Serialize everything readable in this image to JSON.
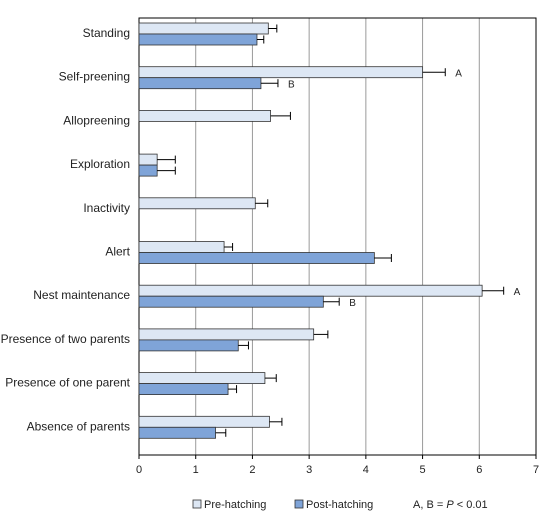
{
  "chart_data": {
    "type": "bar",
    "orientation": "horizontal",
    "categories": [
      "Standing",
      "Self-preening",
      "Allopreening",
      "Exploration",
      "Inactivity",
      "Alert",
      "Nest maintenance",
      "Presence  of two parents",
      "Presence of one parent",
      "Absence of parents"
    ],
    "series": [
      {
        "name": "Pre-hatching",
        "color": "#dde7f4",
        "values": [
          2.28,
          5.0,
          2.32,
          0.32,
          2.05,
          1.5,
          6.05,
          3.08,
          2.22,
          2.3
        ],
        "errors": [
          0.15,
          0.4,
          0.35,
          0.32,
          0.22,
          0.15,
          0.38,
          0.25,
          0.2,
          0.22
        ]
      },
      {
        "name": "Post-hatching",
        "color": "#7fa4d8",
        "values": [
          2.08,
          2.15,
          null,
          0.32,
          null,
          4.15,
          3.25,
          1.75,
          1.57,
          1.35
        ],
        "errors": [
          0.12,
          0.3,
          null,
          0.32,
          null,
          0.3,
          0.28,
          0.18,
          0.15,
          0.18
        ]
      }
    ],
    "annotations": [
      {
        "category": "Self-preening",
        "series": "Pre-hatching",
        "text": "A"
      },
      {
        "category": "Self-preening",
        "series": "Post-hatching",
        "text": "B"
      },
      {
        "category": "Nest maintenance",
        "series": "Pre-hatching",
        "text": "A"
      },
      {
        "category": "Nest maintenance",
        "series": "Post-hatching",
        "text": "B"
      }
    ],
    "xlim": [
      0,
      7
    ],
    "xticks": [
      "0",
      "1",
      "2",
      "3",
      "4",
      "5",
      "6",
      "7"
    ],
    "grid": "vertical",
    "legend_position": "bottom",
    "note": "A, B = P < 0.01"
  }
}
